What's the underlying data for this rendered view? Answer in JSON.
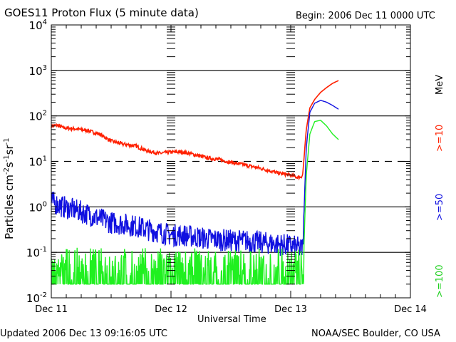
{
  "header": {
    "title": "GOES11 Proton Flux (5 minute data)",
    "begin": "Begin: 2006 Dec 11 0000 UTC"
  },
  "footer": {
    "updated": "Updated 2006 Dec 13 09:16:05 UTC",
    "source": "NOAA/SEC Boulder, CO USA"
  },
  "colors": {
    "ge10": "#ff2000",
    "ge50": "#1010e0",
    "ge100": "#20f020",
    "axis": "#000000"
  },
  "chart_data": {
    "type": "line",
    "title": "GOES11 Proton Flux (5 minute data)",
    "xlabel": "Universal Time",
    "ylabel": "Particles cm-2s-1sr-1",
    "ylabel_parts": {
      "base": "Particles cm",
      "e1": "-2",
      "mid1": "s",
      "e2": "-1",
      "mid2": "sr",
      "e3": "-1"
    },
    "yscale": "log",
    "ylim": [
      0.01,
      10000
    ],
    "xlim_days": [
      0,
      3
    ],
    "x_ticks": [
      "Dec 11",
      "Dec 12",
      "Dec 13",
      "Dec 14"
    ],
    "y_ticks": [
      {
        "value": 10000,
        "base": "10",
        "exp": "4"
      },
      {
        "value": 1000,
        "base": "10",
        "exp": "3"
      },
      {
        "value": 100,
        "base": "10",
        "exp": "2"
      },
      {
        "value": 10,
        "base": "10",
        "exp": "1"
      },
      {
        "value": 1,
        "base": "10",
        "exp": "0"
      },
      {
        "value": 0.1,
        "base": "10",
        "exp": "-1"
      },
      {
        "value": 0.01,
        "base": "10",
        "exp": "-2"
      }
    ],
    "hlines": [
      {
        "value": 1000,
        "style": "solid"
      },
      {
        "value": 100,
        "style": "solid"
      },
      {
        "value": 10,
        "style": "dashed"
      },
      {
        "value": 1,
        "style": "solid"
      },
      {
        "value": 0.1,
        "style": "solid"
      }
    ],
    "unit_label": "MeV",
    "series": [
      {
        "name": ">=10",
        "color": "#ff2000",
        "x_days": [
          0.0,
          0.05,
          0.1,
          0.2,
          0.3,
          0.4,
          0.5,
          0.6,
          0.7,
          0.8,
          0.9,
          1.0,
          1.1,
          1.2,
          1.3,
          1.4,
          1.5,
          1.6,
          1.7,
          1.8,
          1.9,
          2.0,
          2.05,
          2.08,
          2.1,
          2.13,
          2.16,
          2.2,
          2.25,
          2.3,
          2.35,
          2.4
        ],
        "values": [
          60,
          62,
          55,
          52,
          48,
          40,
          28,
          24,
          22,
          17,
          15,
          16,
          16,
          14,
          12,
          11,
          9.5,
          8.5,
          7.5,
          6.5,
          5.5,
          5,
          4.5,
          4.5,
          5,
          50,
          150,
          230,
          330,
          420,
          520,
          600
        ]
      },
      {
        "name": ">=50",
        "color": "#1010e0",
        "x_days": [
          0.0,
          0.1,
          0.2,
          0.3,
          0.4,
          0.5,
          0.6,
          0.7,
          0.8,
          0.9,
          1.0,
          1.1,
          1.2,
          1.3,
          1.4,
          1.5,
          1.6,
          1.7,
          1.8,
          1.9,
          2.0,
          2.05,
          2.08,
          2.1,
          2.13,
          2.16,
          2.2,
          2.25,
          2.3,
          2.35,
          2.4
        ],
        "values": [
          1.3,
          1.0,
          0.85,
          0.7,
          0.55,
          0.45,
          0.42,
          0.38,
          0.32,
          0.28,
          0.24,
          0.24,
          0.22,
          0.2,
          0.19,
          0.18,
          0.18,
          0.17,
          0.16,
          0.15,
          0.14,
          0.13,
          0.12,
          0.12,
          20,
          120,
          190,
          220,
          200,
          170,
          140
        ]
      },
      {
        "name": ">=100",
        "color": "#20f020",
        "x_days": [
          0.0,
          0.5,
          1.0,
          1.5,
          2.0,
          2.08,
          2.1,
          2.13,
          2.16,
          2.2,
          2.25,
          2.3,
          2.35,
          2.4
        ],
        "values": [
          0.02,
          0.02,
          0.02,
          0.02,
          0.02,
          0.02,
          0.02,
          5,
          40,
          75,
          80,
          60,
          40,
          30
        ]
      }
    ]
  }
}
